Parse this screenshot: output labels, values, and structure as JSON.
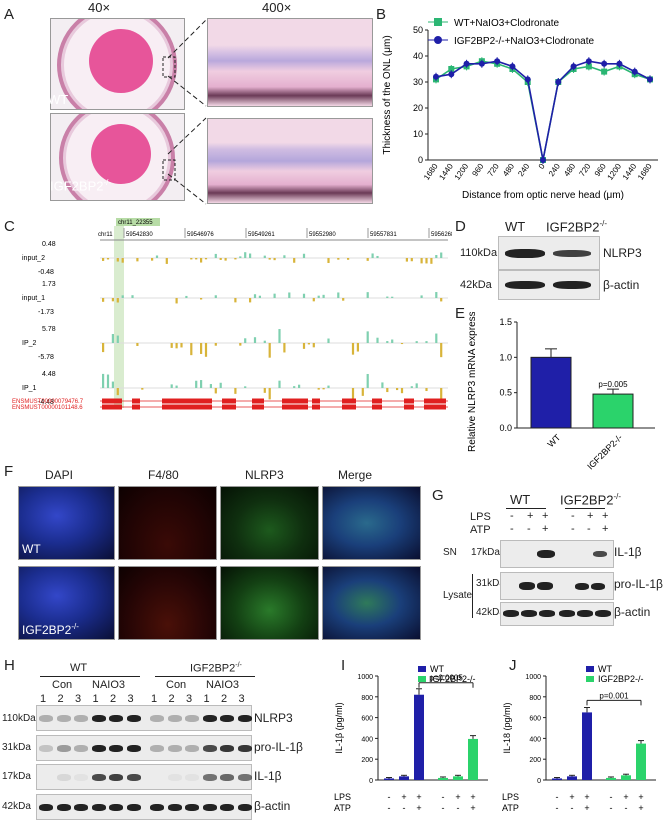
{
  "panels": {
    "A": {
      "label": "A",
      "mag_low": "40×",
      "mag_high": "400×",
      "wt": "WT",
      "ko": "IGF2BP2",
      "ko_sup": "-/-"
    },
    "B": {
      "label": "B"
    },
    "C": {
      "label": "C",
      "chr": "chr11",
      "highlight": "chr11_22355",
      "coords": [
        "59542830",
        "59546976",
        "59549261",
        "59552980",
        "59557831",
        "59562682"
      ],
      "tracks": [
        {
          "name": "input_2",
          "top": "0.48",
          "bottom": "-0.48"
        },
        {
          "name": "input_1",
          "top": "1.73",
          "bottom": "-1.73"
        },
        {
          "name": "IP_2",
          "top": "5.78",
          "bottom": "-5.78"
        },
        {
          "name": "IP_1",
          "top": "4.48",
          "bottom": "-4.48"
        }
      ],
      "transcripts": [
        "ENSMUST00000079476.7",
        "ENSMUST00000101148.6",
        "ENSMUST00000149126.1"
      ]
    },
    "D": {
      "label": "D",
      "wt": "WT",
      "ko": "IGF2BP2",
      "ko_sup": "-/-",
      "rows": [
        {
          "kda": "110kDa",
          "protein": "NLRP3"
        },
        {
          "kda": "42kDa",
          "protein": "β-actin"
        }
      ]
    },
    "E": {
      "label": "E"
    },
    "F": {
      "label": "F",
      "cols": [
        "DAPI",
        "F4/80",
        "NLRP3",
        "Merge"
      ],
      "wt": "WT",
      "ko": "IGF2BP2",
      "ko_sup": "-/-"
    },
    "G": {
      "label": "G",
      "wt": "WT",
      "ko": "IGF2BP2",
      "ko_sup": "-/-",
      "lps": "LPS",
      "atp": "ATP",
      "lps_signs": [
        "-",
        "+",
        "+",
        "-",
        "+",
        "+"
      ],
      "atp_signs": [
        "-",
        "-",
        "+",
        "-",
        "-",
        "+"
      ],
      "sn": "SN",
      "lysate": "Lysate",
      "rows": [
        {
          "kda": "17kDa",
          "protein": "IL-1β"
        },
        {
          "kda": "31kDa",
          "protein": "pro-IL-1β"
        },
        {
          "kda": "42kDa",
          "protein": "β-actin"
        }
      ]
    },
    "H": {
      "label": "H",
      "wt": "WT",
      "ko": "IGF2BP2",
      "ko_sup": "-/-",
      "con": "Con",
      "naio3": "NAIO3",
      "lanes": [
        "1",
        "2",
        "3",
        "1",
        "2",
        "3",
        "1",
        "2",
        "3",
        "1",
        "2",
        "3"
      ],
      "rows": [
        {
          "kda": "110kDa",
          "protein": "NLRP3"
        },
        {
          "kda": "31kDa",
          "protein": "pro-IL-1β"
        },
        {
          "kda": "17kDa",
          "protein": "IL-1β"
        },
        {
          "kda": "42kDa",
          "protein": "β-actin"
        }
      ]
    },
    "I": {
      "label": "I"
    },
    "J": {
      "label": "J"
    }
  },
  "chart_data": [
    {
      "id": "B",
      "type": "line",
      "ylabel": "Thickness of the ONL (μm)",
      "xlabel": "Distance from optic nerve head (μm)",
      "ylim": [
        0,
        50
      ],
      "yticks": [
        "0",
        "10",
        "20",
        "30",
        "40",
        "50"
      ],
      "categories": [
        "1680",
        "1440",
        "1200",
        "960",
        "720",
        "480",
        "240",
        "0",
        "240",
        "480",
        "720",
        "960",
        "1200",
        "1440",
        "1680"
      ],
      "legend": "top",
      "series": [
        {
          "name": "WT+NaIO3+Clodronate",
          "color": "#2bb673",
          "values": [
            31,
            35,
            36,
            38,
            37,
            35,
            30,
            0,
            30,
            35,
            36,
            34,
            36,
            33,
            31
          ]
        },
        {
          "name": "IGF2BP2-/-+NaIO3+Clodronate",
          "color": "#1f1fa8",
          "values": [
            32,
            33,
            37,
            37,
            38,
            36,
            31,
            0,
            30,
            36,
            38,
            37,
            37,
            34,
            31
          ]
        }
      ]
    },
    {
      "id": "E",
      "type": "bar",
      "ylabel": "Relative NLRP3 mRNA expression",
      "ylim": [
        0,
        1.5
      ],
      "yticks": [
        "0.0",
        "0.5",
        "1.0",
        "1.5"
      ],
      "categories": [
        "WT",
        "IGF2BP2-/-"
      ],
      "values": [
        1.0,
        0.48
      ],
      "errors": [
        0.12,
        0.07
      ],
      "colors": [
        "#1f1fa8",
        "#2bd36b"
      ],
      "annotation": "p=0.005"
    },
    {
      "id": "I",
      "type": "bar",
      "ylabel": "IL-1β (pg/ml)",
      "ylim": [
        0,
        1000
      ],
      "yticks": [
        "0",
        "200",
        "400",
        "600",
        "800",
        "1000"
      ],
      "series": [
        {
          "name": "WT",
          "color": "#1f1fa8",
          "values": [
            15,
            35,
            820
          ]
        },
        {
          "name": "IGF2BP2-/-",
          "color": "#2bd36b",
          "values": [
            20,
            35,
            395
          ]
        }
      ],
      "lps_signs": [
        "-",
        "+",
        "+",
        "-",
        "+",
        "+"
      ],
      "atp_signs": [
        "-",
        "-",
        "+",
        "-",
        "-",
        "+"
      ],
      "annotation": "p=0.0005"
    },
    {
      "id": "J",
      "type": "bar",
      "ylabel": "IL-18 (pg/ml)",
      "ylim": [
        0,
        1000
      ],
      "yticks": [
        "0",
        "200",
        "400",
        "600",
        "800",
        "1000"
      ],
      "series": [
        {
          "name": "WT",
          "color": "#1f1fa8",
          "values": [
            15,
            35,
            650
          ]
        },
        {
          "name": "IGF2BP2-/-",
          "color": "#2bd36b",
          "values": [
            20,
            45,
            350
          ]
        }
      ],
      "lps_signs": [
        "-",
        "+",
        "+",
        "-",
        "+",
        "+"
      ],
      "atp_signs": [
        "-",
        "-",
        "+",
        "-",
        "-",
        "+"
      ],
      "annotation": "p=0.001"
    }
  ]
}
